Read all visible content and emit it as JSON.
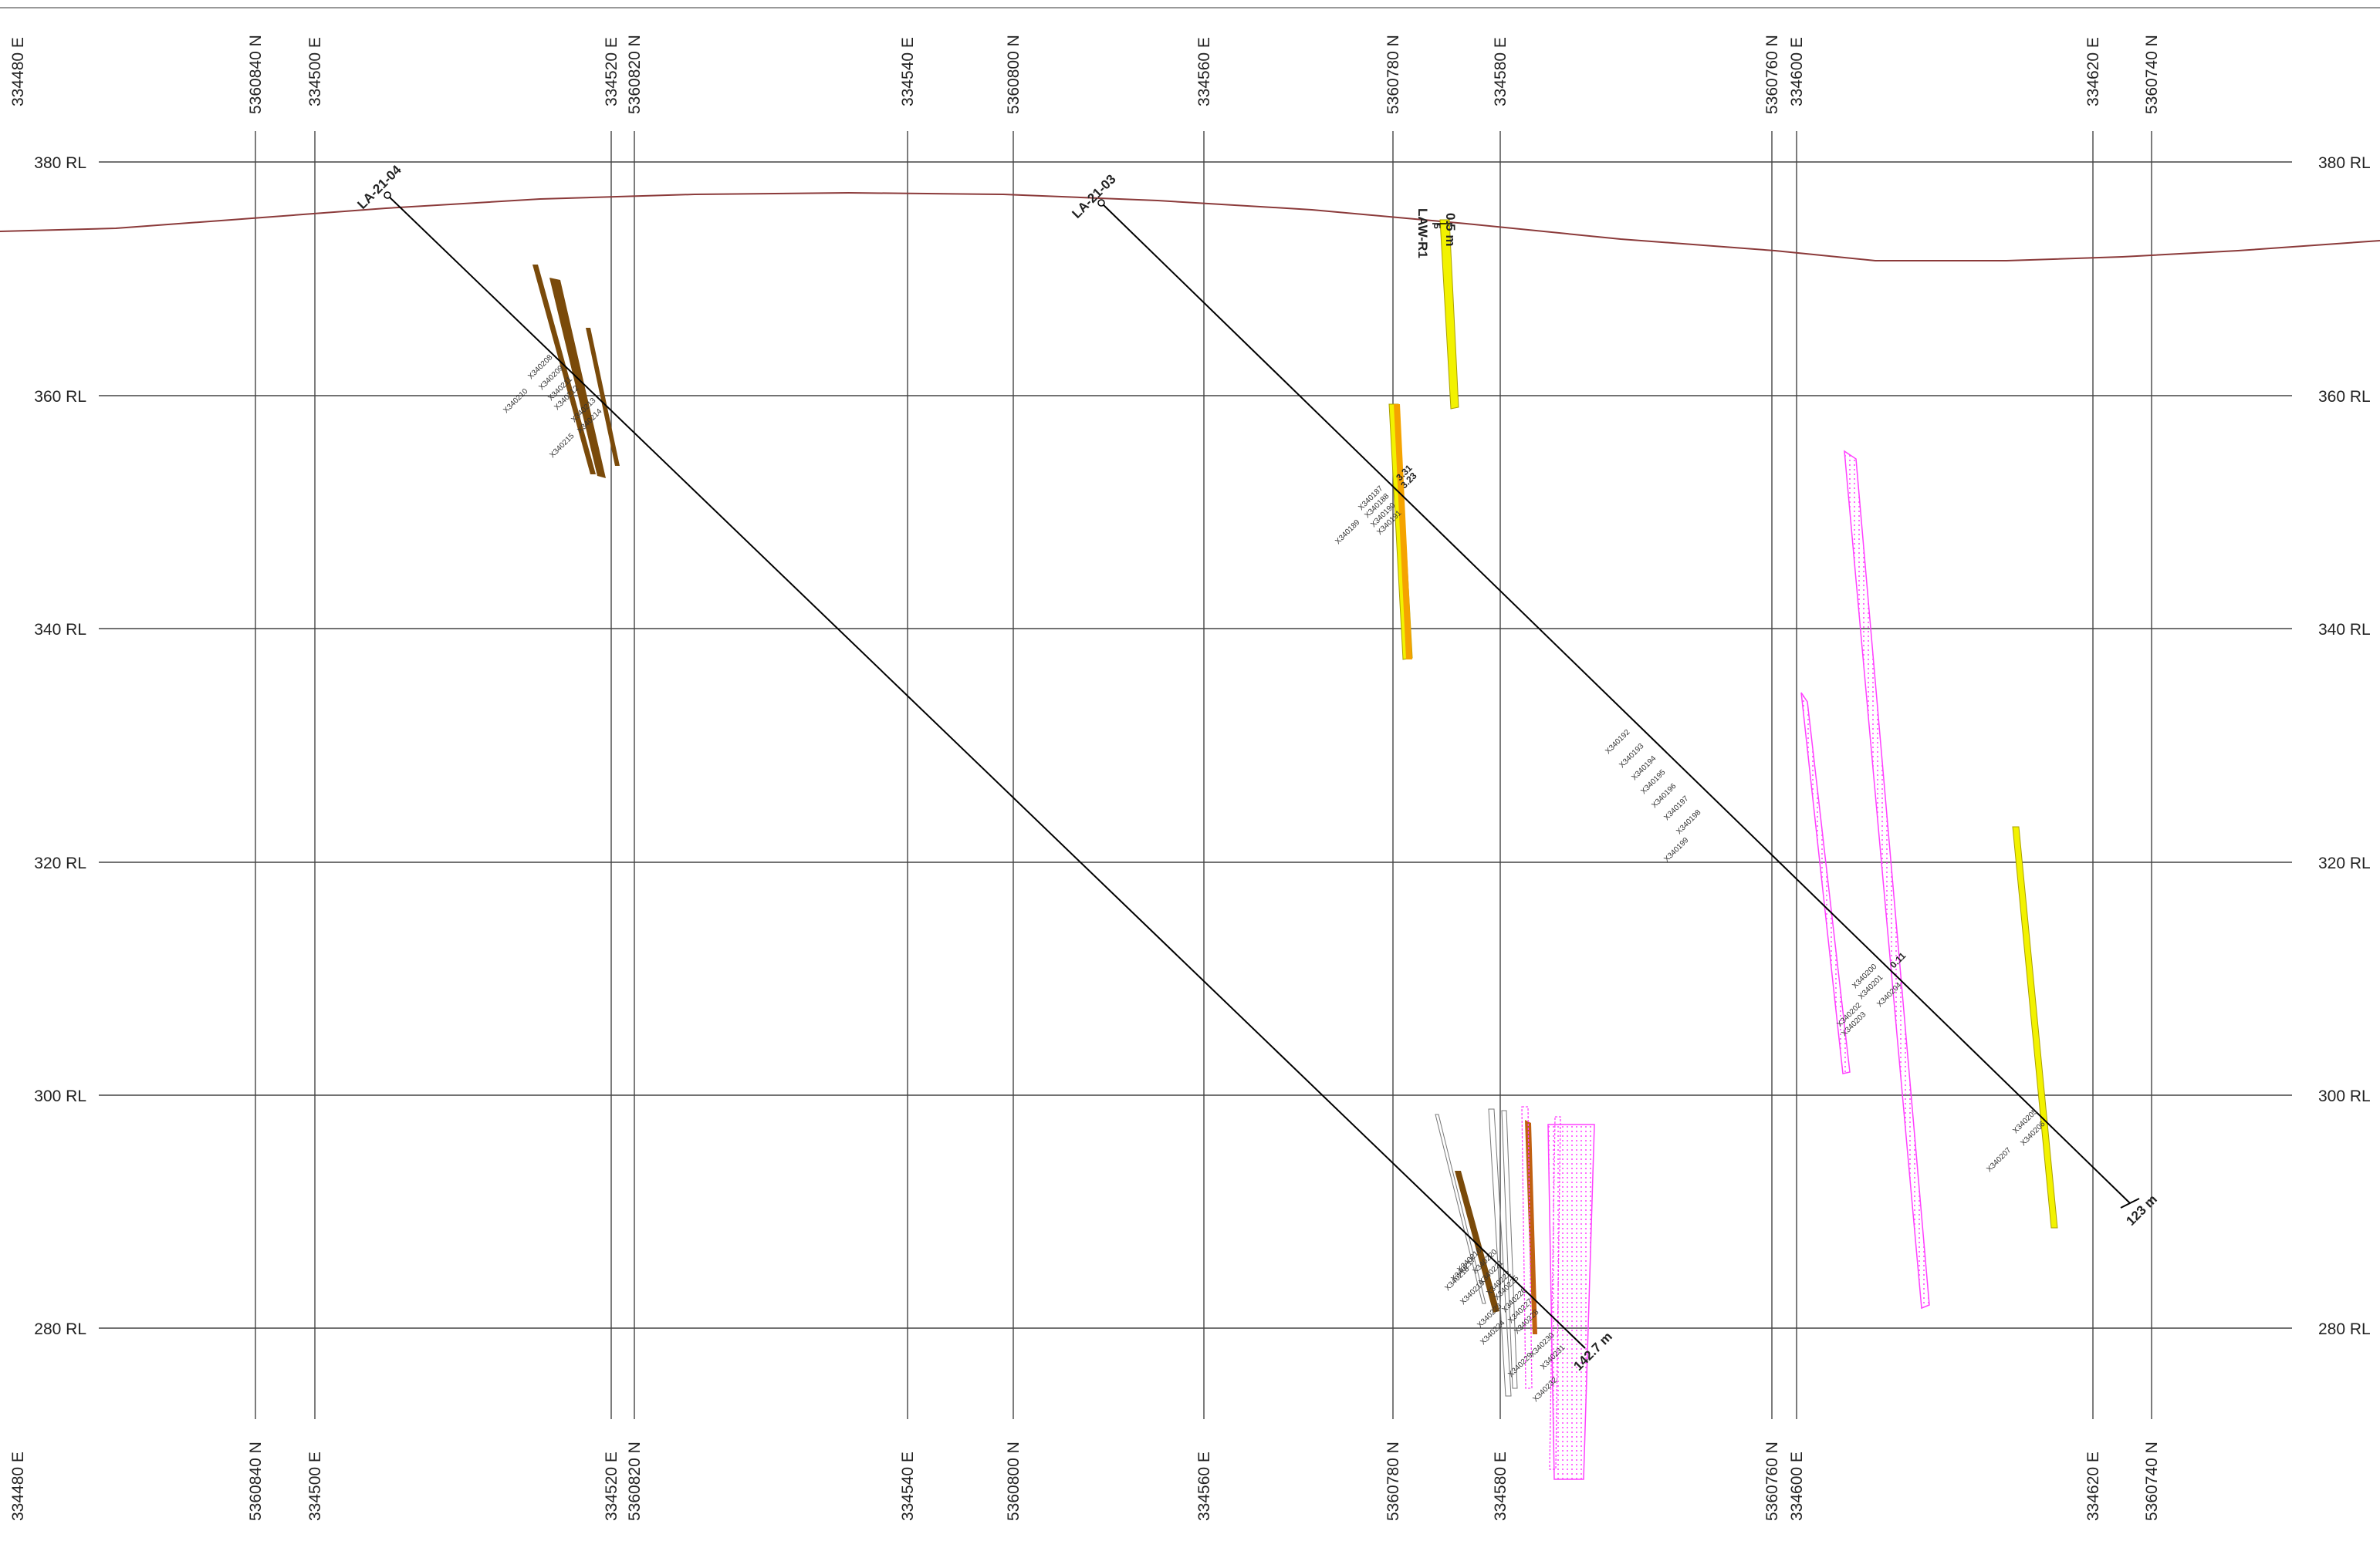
{
  "section": {
    "rl_levels": [
      "380 RL",
      "360 RL",
      "340 RL",
      "320 RL",
      "300 RL",
      "280 RL"
    ],
    "coord_labels": [
      "334480 E",
      "5360840 N",
      "334500 E",
      "334520 E",
      "5360820 N",
      "334540 E",
      "5360800 N",
      "334560 E",
      "5360780 N",
      "334580 E",
      "5360760 N",
      "334600 E",
      "334620 E",
      "5360740 N"
    ]
  },
  "drillholes": [
    {
      "name": "LA-21-04",
      "end_depth": "142.7 m",
      "samples": [
        "X340208",
        "X340209",
        "X340210",
        "X340211",
        "X340212",
        "X340213",
        "X340214",
        "X340215",
        "X340216",
        "X340217",
        "X340218",
        "X340219",
        "X340220",
        "X340221",
        "X340222",
        "X340223",
        "X340224",
        "X340225",
        "X340226",
        "X340227",
        "X340228",
        "X340229",
        "X340230",
        "X340231",
        "X340232"
      ]
    },
    {
      "name": "LA-21-03",
      "end_depth": "123 m",
      "samples": [
        "X340187",
        "X340188",
        "X340189",
        "X340190",
        "X340191",
        "X340192",
        "X340193",
        "X340194",
        "X340195",
        "X340196",
        "X340197",
        "X340198",
        "X340199",
        "X340200",
        "X340201",
        "X340202",
        "X340203",
        "X340204",
        "X340205",
        "X340206",
        "X340207"
      ],
      "assays": [
        "3.31",
        "3.23",
        "0.11"
      ]
    }
  ],
  "surface_sample": {
    "name": "LAW-R1",
    "width": "0.5 m",
    "value": "5"
  },
  "colors": {
    "topography": "#8b3a3a",
    "grid": "#444444",
    "drill_trace": "#000000",
    "vein_brown": "#7a4a0a",
    "vein_yellow": "#f2f200",
    "vein_orange": "#f5a300",
    "vein_magenta": "#ff40ff"
  }
}
